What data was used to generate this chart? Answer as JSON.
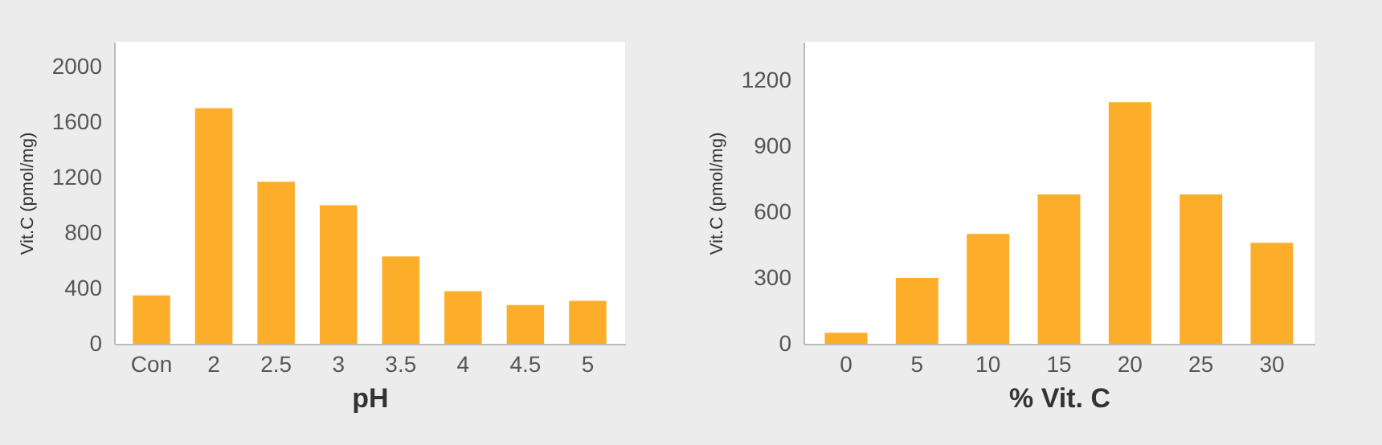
{
  "chart_data": [
    {
      "type": "bar",
      "xlabel": "pH",
      "ylabel": "Vit.C (pmol/mg)",
      "categories": [
        "Con",
        "2",
        "2.5",
        "3",
        "3.5",
        "4",
        "4.5",
        "5"
      ],
      "values": [
        350,
        1700,
        1170,
        1000,
        630,
        380,
        280,
        310
      ],
      "color": "#fcae2a",
      "ylim": [
        0,
        2180
      ],
      "yticks": [
        0,
        400,
        800,
        1200,
        1600,
        2000
      ],
      "grid": false
    },
    {
      "type": "bar",
      "xlabel": "% Vit. C",
      "ylabel": "Vit.C (pmol/mg)",
      "categories": [
        "0",
        "5",
        "10",
        "15",
        "20",
        "25",
        "30"
      ],
      "values": [
        50,
        300,
        500,
        680,
        1100,
        680,
        460
      ],
      "color": "#fcae2a",
      "ylim": [
        0,
        1375
      ],
      "yticks": [
        0,
        300,
        600,
        900,
        1200
      ],
      "grid": false
    }
  ]
}
